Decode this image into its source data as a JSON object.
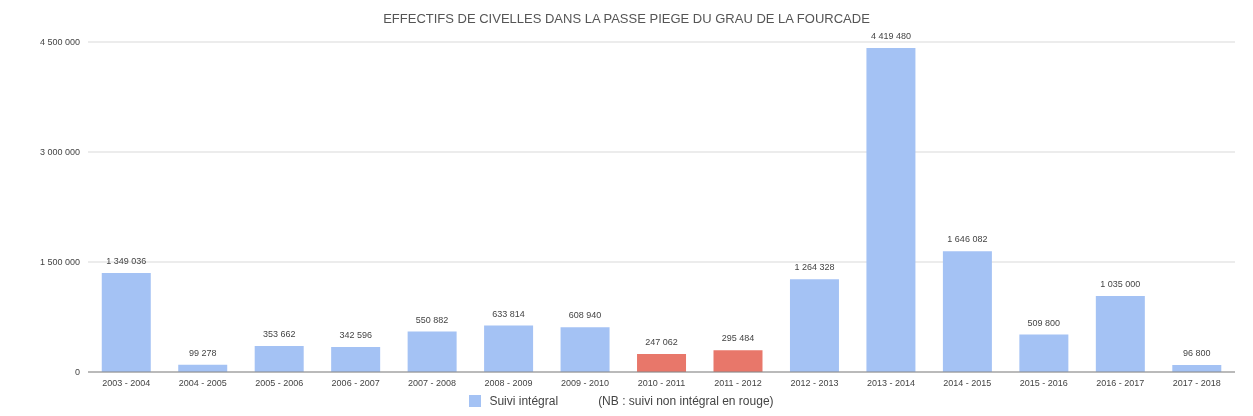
{
  "chart_data": {
    "type": "bar",
    "title": "EFFECTIFS DE CIVELLES DANS LA PASSE PIEGE DU GRAU DE LA FOURCADE",
    "categories": [
      "2003 - 2004",
      "2004 - 2005",
      "2005 - 2006",
      "2006 - 2007",
      "2007 - 2008",
      "2008 - 2009",
      "2009 - 2010",
      "2010 - 2011",
      "2011 - 2012",
      "2012 - 2013",
      "2013 - 2014",
      "2014 - 2015",
      "2015 - 2016",
      "2016 - 2017",
      "2017 - 2018"
    ],
    "series": [
      {
        "name": "Suivi intégral",
        "color": "#a4c2f4",
        "values": [
          1349036,
          99278,
          353662,
          342596,
          550882,
          633814,
          608940,
          247062,
          295484,
          1264328,
          4419480,
          1646082,
          509800,
          1035000,
          96800
        ],
        "colors": [
          "#a4c2f4",
          "#a4c2f4",
          "#a4c2f4",
          "#a4c2f4",
          "#a4c2f4",
          "#a4c2f4",
          "#a4c2f4",
          "#e8776a",
          "#e8776a",
          "#a4c2f4",
          "#a4c2f4",
          "#a4c2f4",
          "#a4c2f4",
          "#a4c2f4",
          "#a4c2f4"
        ],
        "value_labels": [
          "1 349 036",
          "99 278",
          "353 662",
          "342 596",
          "550 882",
          "633 814",
          "608 940",
          "247 062",
          "295 484",
          "1 264 328",
          "4 419 480",
          "1 646 082",
          "509 800",
          "1 035 000",
          "96 800"
        ]
      }
    ],
    "ylim": [
      0,
      4500000
    ],
    "yticks": [
      0,
      {
        "value": 1500000,
        "label": "1 500 000"
      },
      {
        "value": 3000000,
        "label": "3 000 000"
      },
      {
        "value": 4500000,
        "label": "4 500 000"
      }
    ],
    "grid": "y",
    "legend": "bottom",
    "annotations": [
      "(NB : suivi non intégral en rouge)"
    ]
  }
}
